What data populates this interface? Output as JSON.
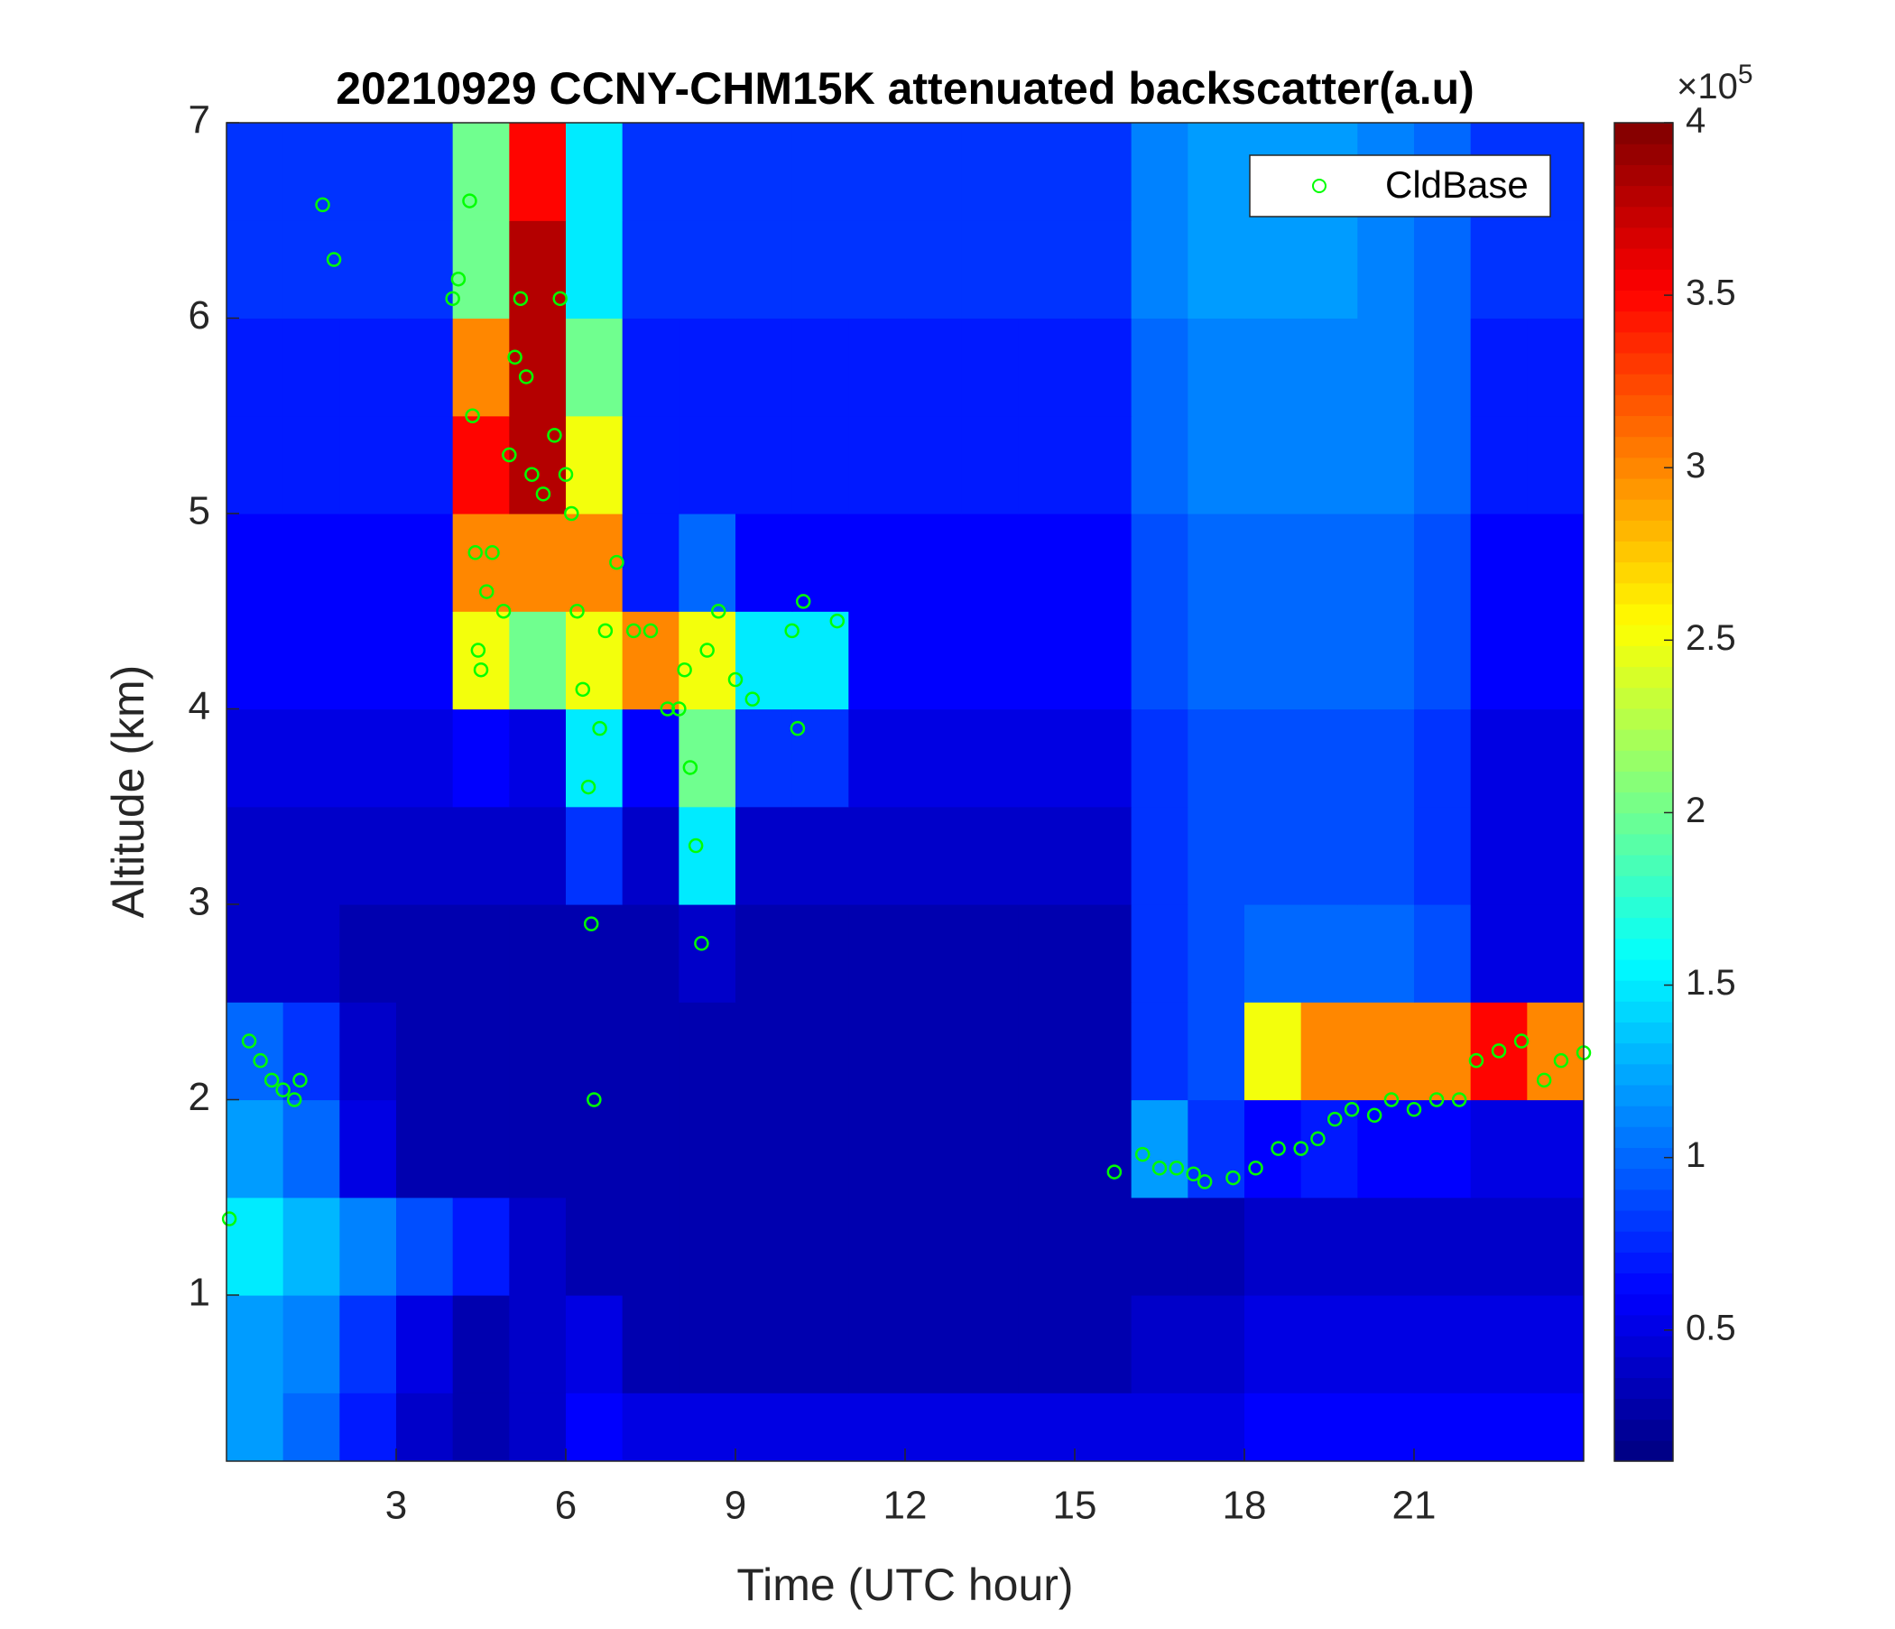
{
  "chart_data": {
    "type": "heatmap",
    "title": "20210929 CCNY-CHM15K attenuated backscatter(a.u)",
    "x_label": "Time (UTC hour)",
    "y_label": "Altitude (km)",
    "xlim": [
      0,
      24
    ],
    "xticks": [
      3,
      6,
      9,
      12,
      15,
      18,
      21
    ],
    "ylim": [
      0.15,
      7
    ],
    "yticks": [
      1,
      2,
      3,
      4,
      5,
      6,
      7
    ],
    "colormap": "jet",
    "clim": [
      0.12,
      4
    ],
    "colorbar_ticks": [
      0.5,
      1,
      1.5,
      2,
      2.5,
      3,
      3.5,
      4
    ],
    "colorbar_multiplier_base": "×10",
    "colorbar_multiplier_exponent": "5",
    "legend_position": "upper right",
    "z_x": [
      0,
      1,
      2,
      3,
      4,
      5,
      6,
      7,
      8,
      9,
      10,
      11,
      12,
      13,
      14,
      15,
      16,
      17,
      18,
      19,
      20,
      21,
      22,
      23,
      24
    ],
    "z_y": [
      0,
      0.5,
      1,
      1.5,
      2,
      2.5,
      3,
      3.5,
      4,
      4.5,
      5,
      5.5,
      6,
      6.5,
      7
    ],
    "z": [
      [
        1.2,
        1.0,
        0.7,
        0.4,
        0.3,
        0.4,
        0.6,
        0.5,
        0.5,
        0.5,
        0.5,
        0.5,
        0.5,
        0.5,
        0.5,
        0.5,
        0.5,
        0.5,
        0.6,
        0.6,
        0.6,
        0.6,
        0.6,
        0.6
      ],
      [
        1.2,
        1.1,
        0.8,
        0.5,
        0.3,
        0.4,
        0.5,
        0.3,
        0.3,
        0.3,
        0.3,
        0.3,
        0.3,
        0.3,
        0.3,
        0.3,
        0.4,
        0.4,
        0.5,
        0.5,
        0.5,
        0.5,
        0.5,
        0.5
      ],
      [
        1.5,
        1.3,
        1.1,
        0.9,
        0.7,
        0.4,
        0.3,
        0.3,
        0.3,
        0.3,
        0.3,
        0.3,
        0.3,
        0.3,
        0.3,
        0.3,
        0.3,
        0.3,
        0.4,
        0.4,
        0.4,
        0.4,
        0.4,
        0.4
      ],
      [
        1.2,
        1.0,
        0.5,
        0.3,
        0.3,
        0.3,
        0.3,
        0.3,
        0.3,
        0.3,
        0.3,
        0.3,
        0.3,
        0.3,
        0.3,
        0.3,
        1.2,
        0.8,
        0.6,
        0.7,
        0.6,
        0.6,
        0.5,
        0.5
      ],
      [
        1.0,
        0.8,
        0.4,
        0.3,
        0.3,
        0.3,
        0.3,
        0.3,
        0.3,
        0.3,
        0.3,
        0.3,
        0.3,
        0.3,
        0.3,
        0.3,
        0.8,
        0.9,
        2.5,
        3.0,
        3.0,
        3.0,
        3.5,
        3.0
      ],
      [
        0.4,
        0.4,
        0.3,
        0.3,
        0.3,
        0.3,
        0.3,
        0.3,
        0.4,
        0.3,
        0.3,
        0.3,
        0.3,
        0.3,
        0.3,
        0.3,
        0.8,
        0.9,
        1.0,
        1.0,
        1.0,
        0.9,
        0.5,
        0.5
      ],
      [
        0.4,
        0.4,
        0.4,
        0.4,
        0.4,
        0.4,
        0.8,
        0.4,
        1.5,
        0.4,
        0.4,
        0.4,
        0.4,
        0.4,
        0.4,
        0.4,
        0.8,
        0.9,
        0.9,
        0.9,
        0.9,
        0.8,
        0.5,
        0.5
      ],
      [
        0.5,
        0.5,
        0.5,
        0.5,
        0.6,
        0.5,
        1.5,
        0.6,
        2.0,
        0.8,
        0.8,
        0.5,
        0.5,
        0.5,
        0.5,
        0.5,
        0.8,
        0.9,
        0.9,
        0.9,
        0.9,
        0.8,
        0.5,
        0.5
      ],
      [
        0.6,
        0.6,
        0.6,
        0.6,
        2.5,
        2.0,
        2.5,
        3.0,
        2.5,
        1.5,
        1.5,
        0.6,
        0.6,
        0.6,
        0.6,
        0.6,
        0.9,
        1.0,
        1.0,
        1.0,
        1.0,
        0.9,
        0.6,
        0.6
      ],
      [
        0.6,
        0.6,
        0.6,
        0.6,
        3.0,
        3.0,
        3.0,
        0.7,
        1.0,
        0.6,
        0.6,
        0.6,
        0.6,
        0.6,
        0.6,
        0.6,
        0.9,
        1.0,
        1.0,
        1.0,
        1.0,
        0.9,
        0.6,
        0.6
      ],
      [
        0.7,
        0.7,
        0.7,
        0.7,
        3.5,
        3.8,
        2.5,
        0.7,
        0.7,
        0.7,
        0.7,
        0.7,
        0.7,
        0.7,
        0.7,
        0.7,
        1.0,
        1.1,
        1.1,
        1.1,
        1.1,
        1.0,
        0.7,
        0.7
      ],
      [
        0.7,
        0.7,
        0.7,
        0.7,
        3.0,
        3.8,
        2.0,
        0.7,
        0.7,
        0.7,
        0.7,
        0.7,
        0.7,
        0.7,
        0.7,
        0.7,
        1.0,
        1.1,
        1.1,
        1.1,
        1.1,
        1.0,
        0.7,
        0.7
      ],
      [
        0.8,
        0.8,
        0.8,
        0.8,
        2.0,
        3.8,
        1.5,
        0.8,
        0.8,
        0.8,
        0.8,
        0.8,
        0.8,
        0.8,
        0.8,
        0.8,
        1.1,
        1.2,
        1.2,
        1.2,
        1.1,
        1.0,
        0.8,
        0.8
      ],
      [
        0.8,
        0.8,
        0.8,
        0.8,
        2.0,
        3.5,
        1.5,
        0.8,
        0.8,
        0.8,
        0.8,
        0.8,
        0.8,
        0.8,
        0.8,
        0.8,
        1.1,
        1.2,
        1.2,
        1.2,
        1.1,
        1.0,
        0.8,
        0.8
      ]
    ],
    "series": [
      {
        "name": "CldBase",
        "type": "scatter",
        "color": "#00ff00",
        "x": [
          0.05,
          0.4,
          0.6,
          0.8,
          1.0,
          1.2,
          1.3,
          1.7,
          1.9,
          4.0,
          4.1,
          4.3,
          4.35,
          4.4,
          4.45,
          4.5,
          4.6,
          4.7,
          4.9,
          5.0,
          5.1,
          5.2,
          5.3,
          5.4,
          5.6,
          5.8,
          5.9,
          6.0,
          6.1,
          6.2,
          6.3,
          6.4,
          6.45,
          6.5,
          6.6,
          6.7,
          6.9,
          7.2,
          7.5,
          7.8,
          8.0,
          8.1,
          8.2,
          8.3,
          8.4,
          8.5,
          8.7,
          9.0,
          9.3,
          10.0,
          10.1,
          10.2,
          10.8,
          15.7,
          16.2,
          16.5,
          16.8,
          17.1,
          17.3,
          17.8,
          18.2,
          18.6,
          19.0,
          19.3,
          19.6,
          19.9,
          20.3,
          20.6,
          21.0,
          21.4,
          21.8,
          22.1,
          22.5,
          22.9,
          23.3,
          23.6,
          24.0
        ],
        "values": [
          1.39,
          2.3,
          2.2,
          2.1,
          2.05,
          2.0,
          2.1,
          6.58,
          6.3,
          6.1,
          6.2,
          6.6,
          5.5,
          4.8,
          4.3,
          4.2,
          4.6,
          4.8,
          4.5,
          5.3,
          5.8,
          6.1,
          5.7,
          5.2,
          5.1,
          5.4,
          6.1,
          5.2,
          5.0,
          4.5,
          4.1,
          3.6,
          2.9,
          2.0,
          3.9,
          4.4,
          4.75,
          4.4,
          4.4,
          4.0,
          4.0,
          4.2,
          3.7,
          3.3,
          2.8,
          4.3,
          4.5,
          4.15,
          4.05,
          4.4,
          3.9,
          4.55,
          4.45,
          1.63,
          1.72,
          1.65,
          1.65,
          1.62,
          1.58,
          1.6,
          1.65,
          1.75,
          1.75,
          1.8,
          1.9,
          1.95,
          1.92,
          2.0,
          1.95,
          2.0,
          2.0,
          2.2,
          2.25,
          2.3,
          2.1,
          2.2,
          2.24
        ]
      }
    ]
  }
}
